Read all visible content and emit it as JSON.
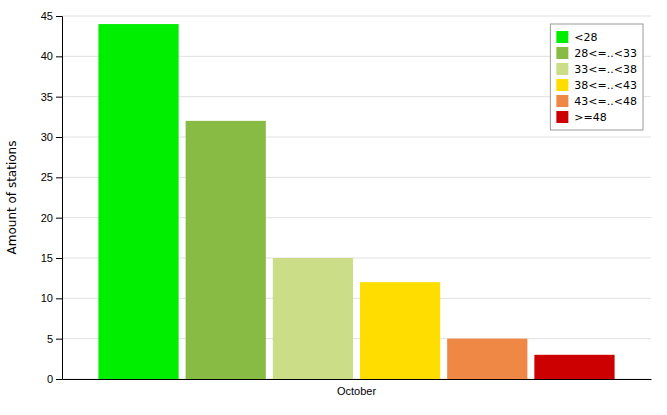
{
  "chart_data": {
    "type": "bar",
    "categories": [
      "October"
    ],
    "series": [
      {
        "name": "<28",
        "color": "#00ee00",
        "values": [
          44
        ]
      },
      {
        "name": "28<=..<33",
        "color": "#88bb44",
        "values": [
          32
        ]
      },
      {
        "name": "33<=..<38",
        "color": "#ccdd88",
        "values": [
          15
        ]
      },
      {
        "name": "38<=..<43",
        "color": "#ffdd00",
        "values": [
          12
        ]
      },
      {
        "name": "43<=..<48",
        "color": "#ee8844",
        "values": [
          5
        ]
      },
      {
        "name": ">=48",
        "color": "#cc0000",
        "values": [
          3
        ]
      }
    ],
    "ylabel": "Amount of stations",
    "ylim": [
      0,
      45
    ],
    "yticks": [
      0,
      5,
      10,
      15,
      20,
      25,
      30,
      35,
      40,
      45
    ],
    "grid": true,
    "legend": "upper right"
  }
}
